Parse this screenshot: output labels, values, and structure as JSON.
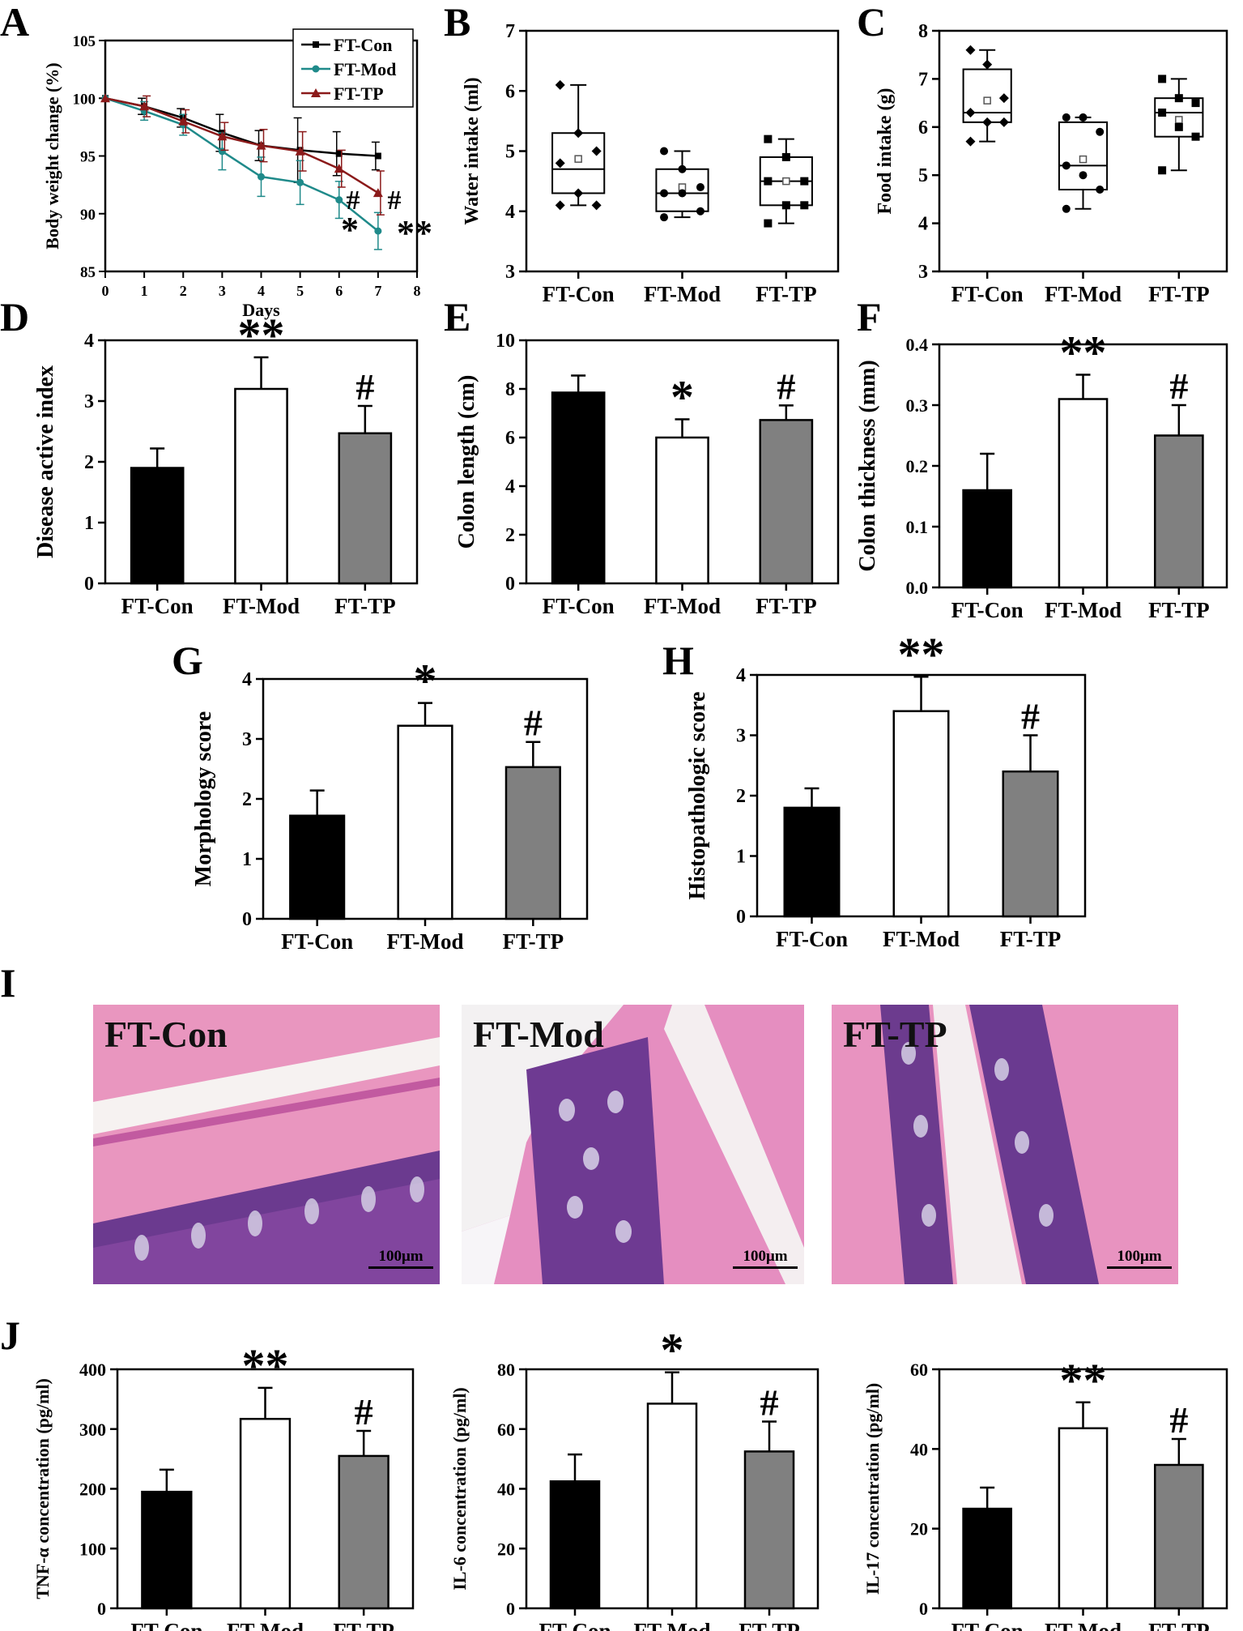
{
  "panels": {
    "A": "A",
    "B": "B",
    "C": "C",
    "D": "D",
    "E": "E",
    "F": "F",
    "G": "G",
    "H": "H",
    "I": "I",
    "J": "J"
  },
  "chart_data": [
    {
      "id": "A",
      "type": "line",
      "xlabel": "Days",
      "ylabel": "Body weight change (%)",
      "xlim": [
        0,
        8
      ],
      "ylim": [
        85,
        105
      ],
      "xticks": [
        "0",
        "1",
        "2",
        "3",
        "4",
        "5",
        "6",
        "7",
        "8"
      ],
      "yticks": [
        "85",
        "90",
        "95",
        "100",
        "105"
      ],
      "series": [
        {
          "name": "FT-Con",
          "color": "#000000",
          "marker": "square",
          "x": [
            0,
            1,
            2,
            3,
            4,
            5,
            6,
            7
          ],
          "y": [
            100,
            99.3,
            98.3,
            97.0,
            95.9,
            95.5,
            95.2,
            95.0
          ],
          "err": [
            0,
            0.7,
            0.8,
            1.6,
            1.3,
            2.8,
            1.9,
            1.2
          ]
        },
        {
          "name": "FT-Mod",
          "color": "#1f8a8a",
          "marker": "circle",
          "x": [
            0,
            1,
            2,
            3,
            4,
            5,
            6,
            7
          ],
          "y": [
            100,
            98.9,
            97.7,
            95.4,
            93.2,
            92.7,
            91.2,
            88.5
          ],
          "err": [
            0,
            0.8,
            0.9,
            1.6,
            1.7,
            1.9,
            1.6,
            1.6
          ]
        },
        {
          "name": "FT-TP",
          "color": "#8b1a1a",
          "marker": "triangle",
          "x": [
            0,
            1,
            2,
            3,
            4,
            5,
            6,
            7
          ],
          "y": [
            100,
            99.3,
            98.0,
            96.7,
            95.9,
            95.4,
            93.9,
            91.8
          ],
          "err": [
            0,
            0.9,
            1.0,
            1.2,
            1.4,
            1.7,
            1.6,
            1.9
          ]
        }
      ],
      "annotations": [
        "#",
        "*",
        "#",
        "**"
      ]
    },
    {
      "id": "B",
      "type": "box",
      "ylabel": "Water intake (ml)",
      "categories": [
        "FT-Con",
        "FT-Mod",
        "FT-TP"
      ],
      "ylim": [
        3,
        7
      ],
      "yticks": [
        "3",
        "4",
        "5",
        "6",
        "7"
      ],
      "boxes": [
        {
          "whisker_low": 4.1,
          "q1": 4.3,
          "median": 4.7,
          "q3": 5.3,
          "whisker_high": 6.1,
          "mean": 4.87,
          "points": [
            6.1,
            5.3,
            5.0,
            4.8,
            4.3,
            4.1,
            4.1
          ]
        },
        {
          "whisker_low": 3.9,
          "q1": 4.0,
          "median": 4.3,
          "q3": 4.7,
          "whisker_high": 5.0,
          "mean": 4.4,
          "points": [
            5.0,
            4.7,
            4.4,
            4.3,
            4.3,
            4.0,
            3.9
          ]
        },
        {
          "whisker_low": 3.8,
          "q1": 4.1,
          "median": 4.5,
          "q3": 4.9,
          "whisker_high": 5.2,
          "mean": 4.5,
          "points": [
            5.2,
            4.9,
            4.5,
            4.5,
            4.1,
            4.1,
            3.8
          ]
        }
      ]
    },
    {
      "id": "C",
      "type": "box",
      "ylabel": "Food intake (g)",
      "categories": [
        "FT-Con",
        "FT-Mod",
        "FT-TP"
      ],
      "ylim": [
        3,
        8
      ],
      "yticks": [
        "3",
        "4",
        "5",
        "6",
        "7",
        "8"
      ],
      "boxes": [
        {
          "whisker_low": 5.7,
          "q1": 6.1,
          "median": 6.3,
          "q3": 7.2,
          "whisker_high": 7.6,
          "mean": 6.55,
          "points": [
            7.6,
            7.3,
            6.6,
            6.3,
            6.1,
            6.1,
            5.7
          ]
        },
        {
          "whisker_low": 4.3,
          "q1": 4.7,
          "median": 5.2,
          "q3": 6.1,
          "whisker_high": 6.2,
          "mean": 5.33,
          "points": [
            6.2,
            6.2,
            5.9,
            5.2,
            5.0,
            4.7,
            4.3
          ]
        },
        {
          "whisker_low": 5.1,
          "q1": 5.8,
          "median": 6.3,
          "q3": 6.6,
          "whisker_high": 7.0,
          "mean": 6.15,
          "points": [
            7.0,
            6.6,
            6.5,
            6.3,
            6.0,
            5.8,
            5.1
          ]
        }
      ]
    },
    {
      "id": "D",
      "type": "bar",
      "ylabel": "Disease active index",
      "categories": [
        "FT-Con",
        "FT-Mod",
        "FT-TP"
      ],
      "values": [
        1.9,
        3.2,
        2.47
      ],
      "err": [
        0.32,
        0.52,
        0.45
      ],
      "ylim": [
        0,
        4
      ],
      "yticks": [
        "0",
        "1",
        "2",
        "3",
        "4"
      ],
      "sig": [
        "",
        "**",
        "#"
      ]
    },
    {
      "id": "E",
      "type": "bar",
      "ylabel": "Colon length (cm)",
      "categories": [
        "FT-Con",
        "FT-Mod",
        "FT-TP"
      ],
      "values": [
        7.85,
        6.0,
        6.72
      ],
      "err": [
        0.7,
        0.75,
        0.6
      ],
      "ylim": [
        0,
        10
      ],
      "yticks": [
        "0",
        "2",
        "4",
        "6",
        "8",
        "10"
      ],
      "sig": [
        "",
        "*",
        "#"
      ]
    },
    {
      "id": "F",
      "type": "bar",
      "ylabel": "Colon thickness (mm)",
      "categories": [
        "FT-Con",
        "FT-Mod",
        "FT-TP"
      ],
      "values": [
        0.16,
        0.31,
        0.25
      ],
      "err": [
        0.06,
        0.04,
        0.05
      ],
      "ylim": [
        0,
        0.4
      ],
      "yticks": [
        "0.0",
        "0.1",
        "0.2",
        "0.3",
        "0.4"
      ],
      "sig": [
        "",
        "**",
        "#"
      ]
    },
    {
      "id": "G",
      "type": "bar",
      "ylabel": "Morphology score",
      "categories": [
        "FT-Con",
        "FT-Mod",
        "FT-TP"
      ],
      "values": [
        1.72,
        3.22,
        2.53
      ],
      "err": [
        0.42,
        0.38,
        0.42
      ],
      "ylim": [
        0,
        4
      ],
      "yticks": [
        "0",
        "1",
        "2",
        "3",
        "4"
      ],
      "sig": [
        "",
        "*",
        "#"
      ]
    },
    {
      "id": "H",
      "type": "bar",
      "ylabel": "Histopathologic score",
      "categories": [
        "FT-Con",
        "FT-Mod",
        "FT-TP"
      ],
      "values": [
        1.8,
        3.4,
        2.4
      ],
      "err": [
        0.32,
        0.57,
        0.6
      ],
      "ylim": [
        0,
        4
      ],
      "yticks": [
        "0",
        "1",
        "2",
        "3",
        "4"
      ],
      "sig": [
        "",
        "**",
        "#"
      ]
    },
    {
      "id": "J1",
      "type": "bar",
      "ylabel": "TNF-α concentration (pg/ml)",
      "categories": [
        "FT-Con",
        "FT-Mod",
        "FT-TP"
      ],
      "values": [
        195,
        317,
        255
      ],
      "err": [
        37,
        52,
        42
      ],
      "ylim": [
        0,
        400
      ],
      "yticks": [
        "0",
        "100",
        "200",
        "300",
        "400"
      ],
      "sig": [
        "",
        "**",
        "#"
      ]
    },
    {
      "id": "J2",
      "type": "bar",
      "ylabel": "IL-6 concentration (pg/ml)",
      "categories": [
        "FT-Con",
        "FT-Mod",
        "FT-TP"
      ],
      "values": [
        42.5,
        68.5,
        52.5
      ],
      "err": [
        9,
        10.5,
        10
      ],
      "ylim": [
        0,
        80
      ],
      "yticks": [
        "0",
        "20",
        "40",
        "60",
        "80"
      ],
      "sig": [
        "",
        "*",
        "#"
      ]
    },
    {
      "id": "J3",
      "type": "bar",
      "ylabel": "IL-17 concentration (pg/ml)",
      "categories": [
        "FT-Con",
        "FT-Mod",
        "FT-TP"
      ],
      "values": [
        25,
        45.2,
        36
      ],
      "err": [
        5.3,
        6.5,
        6.5
      ],
      "ylim": [
        0,
        60
      ],
      "yticks": [
        "0",
        "20",
        "40",
        "60"
      ],
      "sig": [
        "",
        "**",
        "#"
      ]
    }
  ],
  "histology": [
    {
      "label": "FT-Con",
      "scale": "100μm"
    },
    {
      "label": "FT-Mod",
      "scale": "100μm"
    },
    {
      "label": "FT-TP",
      "scale": "100μm"
    }
  ],
  "colors": {
    "con": "#000000",
    "mod": "#ffffff",
    "tp": "#808080",
    "tissue_pink": "#e48ab8",
    "nuclei_purple": "#5a2a7a",
    "lumen": "#f4f1f0"
  }
}
